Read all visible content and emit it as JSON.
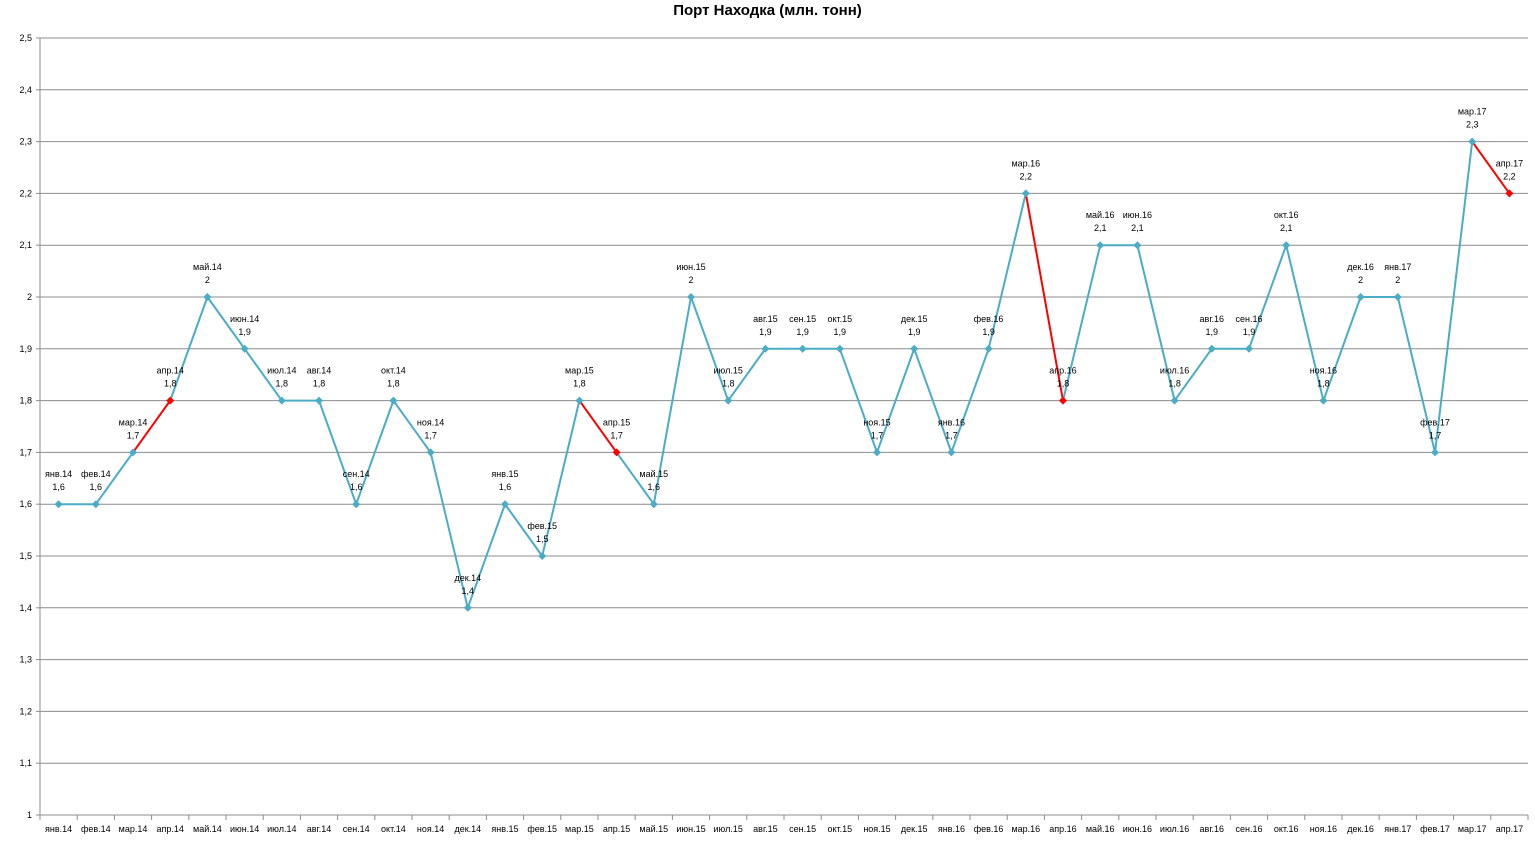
{
  "chart_data": {
    "type": "line",
    "title": "Порт Находка (млн. тонн)",
    "xlabel": "",
    "ylabel": "",
    "ylim": [
      1,
      2.5
    ],
    "yticks": [
      "1",
      "1,1",
      "1,2",
      "1,3",
      "1,4",
      "1,5",
      "1,6",
      "1,7",
      "1,8",
      "1,9",
      "2",
      "2,1",
      "2,2",
      "2,3",
      "2,4",
      "2,5"
    ],
    "grid": true,
    "legend": "none",
    "line_color": "#4BACC6",
    "highlight_color": "#FF0000",
    "categories": [
      "янв.14",
      "фев.14",
      "мар.14",
      "апр.14",
      "май.14",
      "июн.14",
      "июл.14",
      "авг.14",
      "сен.14",
      "окт.14",
      "ноя.14",
      "дек.14",
      "янв.15",
      "фев.15",
      "мар.15",
      "апр.15",
      "май.15",
      "июн.15",
      "июл.15",
      "авг.15",
      "сен.15",
      "окт.15",
      "ноя.15",
      "дек.15",
      "янв.16",
      "фев.16",
      "мар.16",
      "апр.16",
      "май.16",
      "июн.16",
      "июл.16",
      "авг.16",
      "сен.16",
      "окт.16",
      "ноя.16",
      "дек.16",
      "янв.17",
      "фев.17",
      "мар.17",
      "апр.17"
    ],
    "values": [
      1.6,
      1.6,
      1.7,
      1.8,
      2,
      1.9,
      1.8,
      1.8,
      1.6,
      1.8,
      1.7,
      1.4,
      1.6,
      1.5,
      1.8,
      1.7,
      1.6,
      2,
      1.8,
      1.9,
      1.9,
      1.9,
      1.7,
      1.9,
      1.7,
      1.9,
      2.2,
      1.8,
      2.1,
      2.1,
      1.8,
      1.9,
      1.9,
      2.1,
      1.8,
      2,
      2,
      1.7,
      2.3,
      2.2
    ],
    "value_labels": [
      "1,6",
      "1,6",
      "1,7",
      "1,8",
      "2",
      "1,9",
      "1,8",
      "1,8",
      "1,6",
      "1,8",
      "1,7",
      "1,4",
      "1,6",
      "1,5",
      "1,8",
      "1,7",
      "1,6",
      "2",
      "1,8",
      "1,9",
      "1,9",
      "1,9",
      "1,7",
      "1,9",
      "1,7",
      "1,9",
      "2,2",
      "1,8",
      "2,1",
      "2,1",
      "1,8",
      "1,9",
      "1,9",
      "2,1",
      "1,8",
      "2",
      "2",
      "1,7",
      "2,3",
      "2,2"
    ],
    "highlighted_points": [
      "апр.14",
      "апр.15",
      "апр.16",
      "апр.17"
    ]
  }
}
